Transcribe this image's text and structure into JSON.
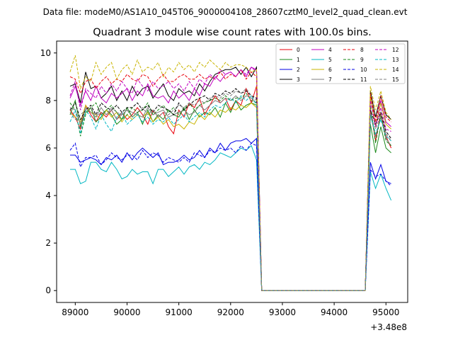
{
  "figure": {
    "suptitle": "Data file: modeM0/AS1A10_045T06_9000004108_28607cztM0_level2_quad_clean.evt",
    "offset_label": "+3.48e8"
  },
  "chart_data": {
    "type": "line",
    "title": "Quadrant 3 module wise count rates with 100.0s bins.",
    "xlabel": "",
    "ylabel": "",
    "xlim": [
      88640,
      95420
    ],
    "ylim": [
      -0.5,
      10.5
    ],
    "x_offset": 348000000,
    "xticks": [
      89000,
      90000,
      91000,
      92000,
      93000,
      94000,
      95000
    ],
    "xtick_labels": [
      "89000",
      "90000",
      "91000",
      "92000",
      "93000",
      "94000",
      "95000"
    ],
    "yticks": [
      0,
      2,
      4,
      6,
      8,
      10
    ],
    "ytick_labels": [
      "0",
      "2",
      "4",
      "6",
      "8",
      "10"
    ],
    "grid": false,
    "legend_position": "top-right",
    "legend_columns": 4,
    "x_segments": [
      {
        "start": 88900,
        "step": 100,
        "count": 37
      },
      {
        "start": 92600,
        "step": 100,
        "count": 21
      },
      {
        "start": 94700,
        "step": 100,
        "count": 5
      }
    ],
    "series": [
      {
        "name": "0",
        "color": "#e8000b",
        "dash": false,
        "seg1": [
          7.6,
          7.3,
          6.8,
          7.8,
          7.4,
          7.1,
          7.5,
          7.3,
          7.6,
          7.2,
          7.5,
          7.2,
          7.4,
          7.7,
          7.4,
          7.0,
          7.6,
          7.3,
          7.5,
          6.9,
          6.6,
          7.6,
          7.3,
          7.9,
          7.7,
          8.1,
          7.4,
          7.8,
          8.2,
          7.9,
          8.1,
          7.6,
          8.0,
          7.8,
          8.5,
          7.9,
          8.6
        ],
        "seg3": [
          7.6,
          6.3,
          7.5,
          6.5,
          6.0
        ]
      },
      {
        "name": "1",
        "color": "#1a8a1a",
        "dash": false,
        "seg1": [
          7.4,
          8.0,
          6.9,
          7.5,
          7.7,
          7.1,
          7.3,
          7.6,
          7.4,
          7.0,
          7.2,
          7.7,
          7.3,
          7.5,
          7.0,
          7.6,
          7.1,
          7.4,
          7.2,
          7.6,
          7.4,
          7.3,
          7.7,
          7.2,
          7.6,
          7.3,
          7.5,
          7.4,
          7.7,
          7.3,
          7.9,
          7.5,
          8.0,
          7.6,
          7.8,
          7.9,
          7.8
        ],
        "seg3": [
          7.0,
          5.8,
          6.9,
          6.0,
          5.8
        ]
      },
      {
        "name": "2",
        "color": "#0000e6",
        "dash": false,
        "seg1": [
          5.7,
          5.7,
          5.4,
          5.5,
          5.6,
          5.5,
          5.3,
          5.6,
          5.5,
          5.7,
          5.4,
          5.8,
          5.5,
          5.8,
          6.0,
          5.8,
          5.6,
          5.8,
          5.3,
          5.4,
          5.4,
          5.5,
          5.7,
          5.5,
          5.6,
          5.9,
          5.6,
          6.0,
          5.8,
          6.2,
          5.9,
          6.2,
          6.3,
          6.3,
          6.4,
          6.2,
          6.4
        ],
        "seg3": [
          5.4,
          4.7,
          5.3,
          4.6,
          4.5
        ]
      },
      {
        "name": "3",
        "color": "#000000",
        "dash": false,
        "seg1": [
          8.6,
          8.7,
          7.9,
          9.2,
          8.5,
          8.6,
          8.1,
          8.3,
          8.6,
          8.0,
          8.4,
          8.0,
          8.6,
          8.2,
          8.5,
          8.6,
          8.1,
          8.4,
          8.7,
          8.2,
          8.0,
          8.5,
          8.3,
          8.4,
          8.2,
          8.7,
          8.4,
          8.8,
          9.1,
          9.2,
          9.3,
          9.3,
          9.4,
          9.1,
          9.4,
          9.0,
          9.4
        ],
        "seg3": [
          8.4,
          7.3,
          8.2,
          7.4,
          7.2
        ]
      },
      {
        "name": "4",
        "color": "#c000c0",
        "dash": false,
        "seg1": [
          8.1,
          8.6,
          7.8,
          8.4,
          8.0,
          8.6,
          8.1,
          7.9,
          8.3,
          8.1,
          8.3,
          8.5,
          8.0,
          8.4,
          8.2,
          8.7,
          8.2,
          8.1,
          8.2,
          7.9,
          8.4,
          8.1,
          8.3,
          8.0,
          8.5,
          8.2,
          8.7,
          8.6,
          9.0,
          8.8,
          9.1,
          9.2,
          9.0,
          9.3,
          9.0,
          9.4,
          9.3
        ],
        "seg3": [
          8.2,
          6.9,
          8.0,
          7.1,
          6.9
        ]
      },
      {
        "name": "5",
        "color": "#00b7c3",
        "dash": false,
        "seg1": [
          5.1,
          5.1,
          4.5,
          4.6,
          5.4,
          5.4,
          5.1,
          5.0,
          5.4,
          5.1,
          4.7,
          4.8,
          5.1,
          4.9,
          5.0,
          5.0,
          4.5,
          5.1,
          5.1,
          4.8,
          5.0,
          5.2,
          4.9,
          5.2,
          5.3,
          5.1,
          5.4,
          5.3,
          5.5,
          5.8,
          5.7,
          5.6,
          5.8,
          6.0,
          5.9,
          6.1,
          5.5
        ],
        "seg3": [
          5.0,
          4.3,
          4.9,
          4.3,
          3.8
        ]
      },
      {
        "name": "6",
        "color": "#c8b400",
        "dash": false,
        "seg1": [
          7.5,
          7.3,
          7.1,
          7.8,
          7.5,
          7.4,
          7.2,
          7.6,
          7.3,
          7.5,
          7.1,
          7.4,
          7.2,
          7.4,
          7.3,
          7.5,
          7.1,
          7.3,
          7.0,
          7.2,
          6.9,
          7.0,
          6.8,
          7.1,
          7.0,
          7.4,
          7.2,
          7.5,
          7.3,
          7.6,
          7.5,
          7.7,
          7.6,
          7.8,
          7.7,
          7.9,
          7.7
        ],
        "seg3": [
          8.2,
          6.9,
          7.9,
          7.0,
          6.8
        ]
      },
      {
        "name": "7",
        "color": "#7f7f7f",
        "dash": false,
        "seg1": [
          7.7,
          7.6,
          7.0,
          7.7,
          7.5,
          7.3,
          7.7,
          7.4,
          7.6,
          7.2,
          7.4,
          7.6,
          7.5,
          7.4,
          7.3,
          7.7,
          7.4,
          7.5,
          7.6,
          7.3,
          7.4,
          7.5,
          7.6,
          7.4,
          7.5,
          7.8,
          7.6,
          7.8,
          8.0,
          7.9,
          8.1,
          8.0,
          8.2,
          8.0,
          8.2,
          8.1,
          7.9
        ],
        "seg3": [
          7.4,
          6.5,
          7.3,
          6.4,
          6.1
        ]
      },
      {
        "name": "8",
        "color": "#e8000b",
        "dash": true,
        "seg1": [
          9.0,
          8.9,
          8.3,
          8.8,
          8.9,
          8.5,
          8.8,
          9.0,
          8.7,
          8.9,
          8.8,
          9.1,
          8.9,
          8.8,
          9.1,
          9.0,
          8.6,
          8.9,
          9.1,
          8.8,
          8.8,
          9.0,
          9.1,
          8.9,
          8.9,
          9.1,
          8.9,
          9.0,
          8.9,
          9.2,
          8.9,
          9.1,
          9.0,
          9.3,
          8.9,
          9.2,
          9.0
        ],
        "seg3": [
          8.3,
          7.1,
          8.2,
          7.3,
          7.1
        ]
      },
      {
        "name": "9",
        "color": "#1a8a1a",
        "dash": true,
        "seg1": [
          7.9,
          7.6,
          6.5,
          7.4,
          7.7,
          7.9,
          7.4,
          7.6,
          7.8,
          7.5,
          7.2,
          7.4,
          7.7,
          7.5,
          7.6,
          7.9,
          7.4,
          7.6,
          7.8,
          7.5,
          7.7,
          7.4,
          7.6,
          7.9,
          7.6,
          7.8,
          7.9,
          8.0,
          8.1,
          8.0,
          8.2,
          8.0,
          8.1,
          8.1,
          8.3,
          8.0,
          7.9
        ],
        "seg3": [
          7.8,
          6.2,
          7.4,
          6.3,
          6.1
        ]
      },
      {
        "name": "10",
        "color": "#0000e6",
        "dash": true,
        "seg1": [
          5.9,
          6.2,
          5.2,
          5.6,
          5.6,
          5.7,
          5.3,
          5.5,
          5.8,
          5.6,
          5.5,
          5.7,
          5.7,
          5.5,
          5.9,
          5.6,
          5.8,
          5.7,
          5.4,
          5.6,
          5.5,
          5.4,
          5.6,
          5.4,
          5.8,
          5.7,
          5.6,
          5.9,
          5.8,
          6.0,
          5.9,
          6.0,
          5.8,
          6.1,
          5.9,
          6.2,
          6.1
        ],
        "seg3": [
          5.1,
          4.8,
          4.9,
          4.6,
          4.4
        ]
      },
      {
        "name": "11",
        "color": "#000000",
        "dash": true,
        "seg1": [
          7.6,
          7.9,
          7.2,
          7.6,
          7.8,
          7.4,
          7.9,
          7.7,
          7.6,
          7.8,
          7.5,
          7.7,
          7.7,
          7.9,
          7.6,
          7.8,
          7.5,
          7.8,
          7.7,
          7.6,
          7.4,
          7.9,
          7.6,
          7.8,
          8.0,
          8.1,
          8.2,
          8.0,
          8.3,
          8.2,
          8.4,
          8.3,
          8.5,
          8.3,
          8.4,
          8.2,
          8.1
        ],
        "seg3": [
          7.6,
          7.0,
          7.5,
          6.7,
          6.4
        ]
      },
      {
        "name": "12",
        "color": "#c000c0",
        "dash": true,
        "seg1": [
          8.2,
          8.8,
          7.6,
          8.5,
          8.3,
          8.1,
          8.6,
          8.3,
          8.7,
          8.4,
          8.8,
          8.5,
          8.3,
          8.9,
          8.6,
          8.4,
          8.8,
          8.5,
          8.6,
          8.8,
          8.5,
          8.7,
          8.4,
          8.8,
          8.5,
          8.9,
          8.7,
          9.1,
          8.9,
          9.3,
          9.1,
          9.2,
          9.0,
          9.3,
          9.1,
          9.4,
          9.2
        ],
        "seg3": [
          8.0,
          6.9,
          7.7,
          6.8,
          6.7
        ]
      },
      {
        "name": "13",
        "color": "#00b7c3",
        "dash": true,
        "seg1": [
          7.1,
          7.6,
          6.6,
          7.6,
          7.3,
          6.8,
          7.4,
          7.0,
          6.7,
          7.3,
          7.5,
          7.0,
          7.2,
          7.4,
          7.1,
          7.3,
          7.0,
          7.2,
          7.1,
          7.3,
          7.0,
          7.2,
          7.4,
          7.1,
          7.3,
          7.5,
          7.3,
          7.6,
          7.8,
          7.7,
          7.9,
          8.1,
          7.9,
          8.2,
          8.0,
          8.2,
          7.8
        ],
        "seg3": [
          7.4,
          6.6,
          7.2,
          6.5,
          6.3
        ]
      },
      {
        "name": "14",
        "color": "#c8b400",
        "dash": true,
        "seg1": [
          9.2,
          9.9,
          8.5,
          9.0,
          8.8,
          9.6,
          9.1,
          9.4,
          9.6,
          8.9,
          9.3,
          9.5,
          9.1,
          9.7,
          9.2,
          9.4,
          9.3,
          9.6,
          9.0,
          9.4,
          9.2,
          9.6,
          9.3,
          9.5,
          9.2,
          9.6,
          9.4,
          9.7,
          9.5,
          9.3,
          9.6,
          9.4,
          9.5,
          9.5,
          9.4,
          9.2,
          9.3
        ],
        "seg3": [
          8.6,
          7.6,
          8.4,
          7.5,
          7.2
        ]
      },
      {
        "name": "15",
        "color": "#7f7f7f",
        "dash": true,
        "seg1": [
          7.5,
          7.2,
          7.4,
          7.6,
          7.7,
          7.3,
          7.5,
          7.4,
          7.7,
          7.5,
          7.4,
          7.6,
          7.3,
          7.5,
          7.7,
          7.4,
          7.6,
          7.3,
          7.5,
          7.4,
          7.6,
          7.8,
          7.7,
          7.9,
          7.8,
          8.0,
          7.9,
          8.1,
          8.2,
          8.1,
          8.3,
          8.2,
          8.4,
          8.3,
          8.5,
          8.2,
          8.0
        ],
        "seg3": [
          7.5,
          6.8,
          7.4,
          6.6,
          6.3
        ]
      }
    ]
  }
}
